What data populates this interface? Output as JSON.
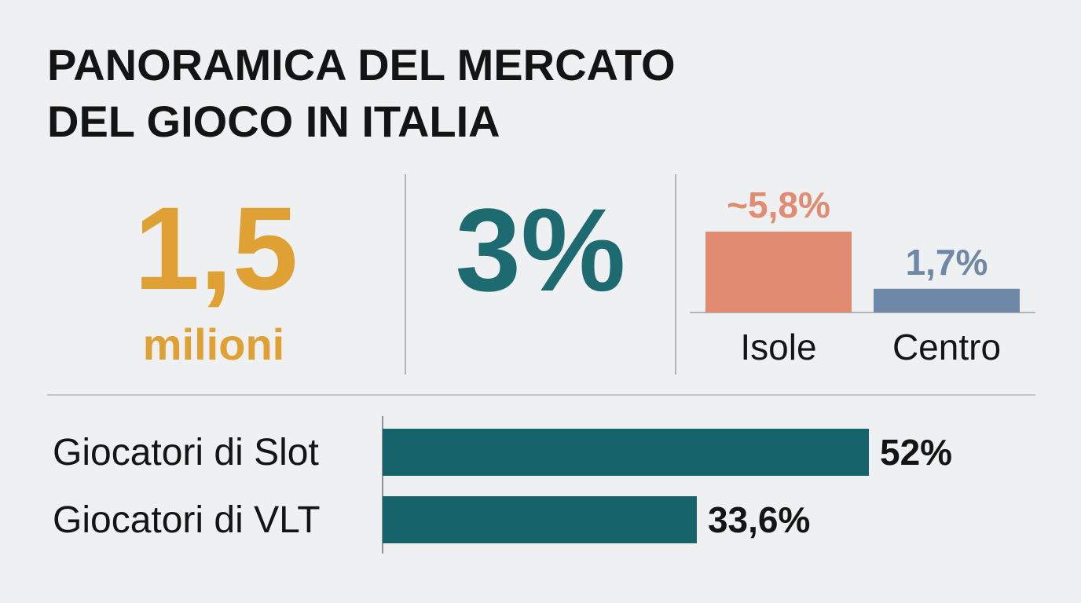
{
  "title": [
    "PANORAMICA DEL MERCATO",
    "DEL GIOCO IN ITALIA"
  ],
  "stats": [
    {
      "value": "1,5",
      "unit": "milioni",
      "color": "#dfa034"
    },
    {
      "value": "3%",
      "color": "#1d6a70"
    }
  ],
  "chart_data": [
    {
      "type": "bar",
      "categories": [
        "Isole",
        "Centro"
      ],
      "values": [
        5.8,
        1.7
      ],
      "value_labels": [
        "~5,8%",
        "1,7%"
      ],
      "colors": [
        "#e08b72",
        "#6e88a7"
      ]
    },
    {
      "type": "hbar",
      "categories": [
        "Giocatori di Slot",
        "Giocatori di VLT"
      ],
      "values": [
        52,
        33.6
      ],
      "value_labels": [
        "52%",
        "33,6%"
      ],
      "color": "#17636b"
    }
  ]
}
